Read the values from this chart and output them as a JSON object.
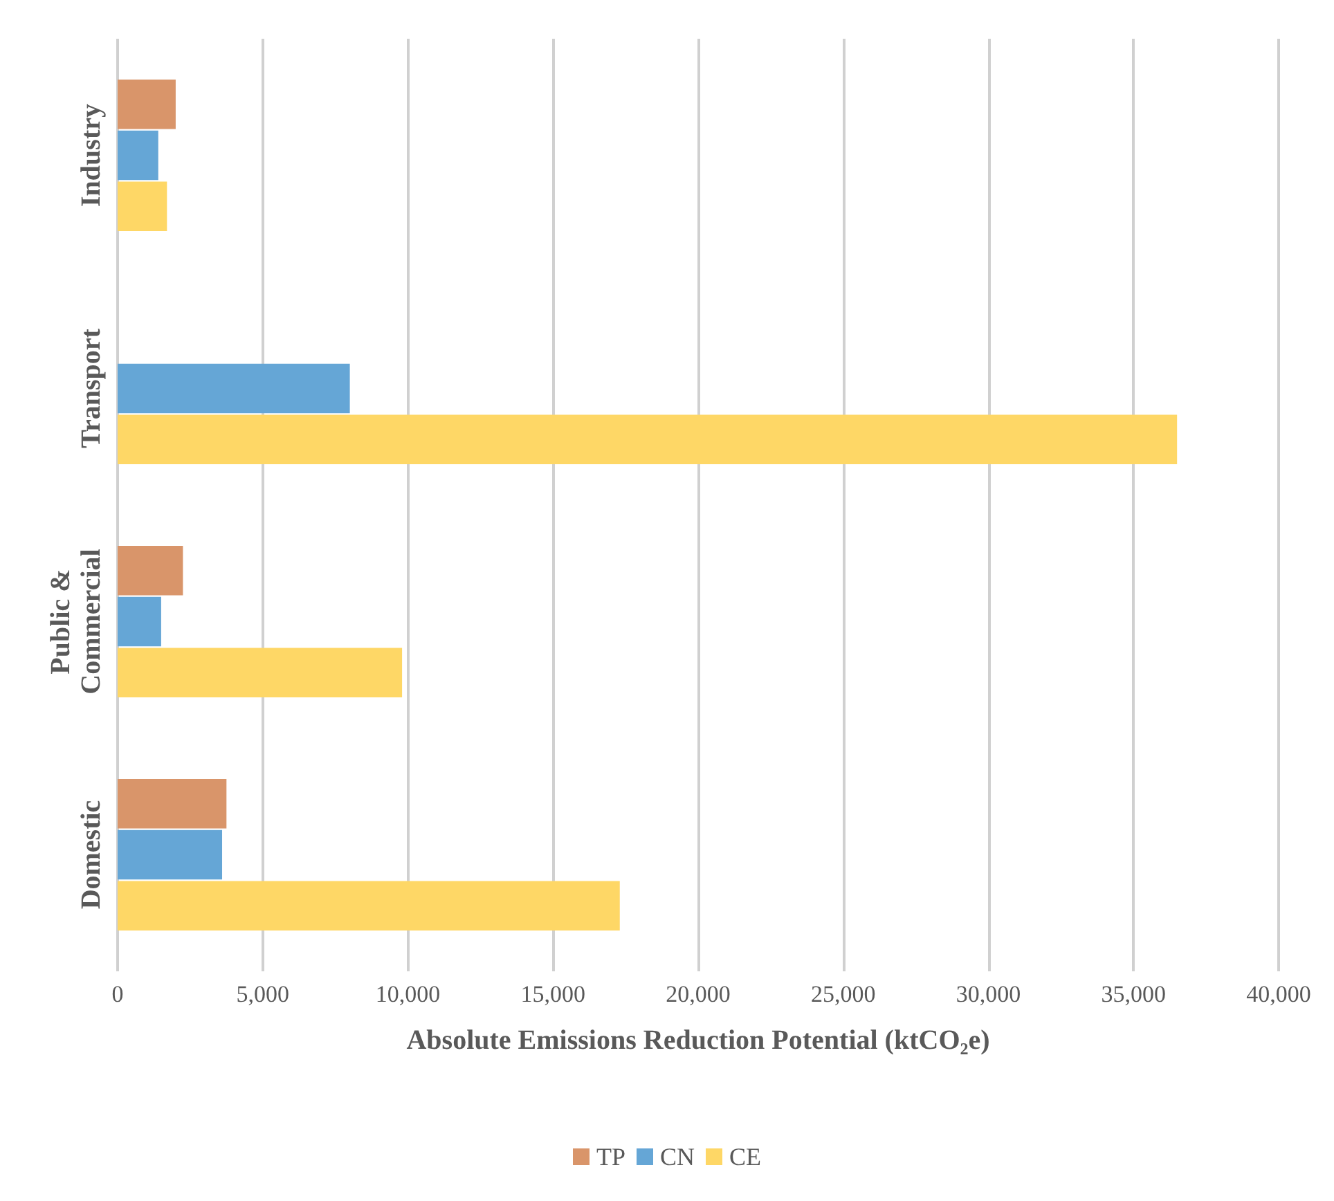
{
  "chart_data": {
    "type": "bar",
    "orientation": "horizontal",
    "xlabel": "Absolute Emissions Reduction Potential (ktCO₂e)",
    "categories": [
      "Industry",
      "Transport",
      "Public & Commercial",
      "Domestic"
    ],
    "series": [
      {
        "name": "TP",
        "color": "#d9956a",
        "values": [
          2000,
          null,
          2250,
          3750
        ]
      },
      {
        "name": "CN",
        "color": "#65a6d6",
        "values": [
          1400,
          8000,
          1500,
          3600
        ]
      },
      {
        "name": "CE",
        "color": "#fed766",
        "values": [
          1700,
          36500,
          9800,
          17300
        ]
      }
    ],
    "xlim": [
      0,
      40000
    ],
    "xticks": [
      0,
      {
        "value": 5000,
        "label": "5,000"
      },
      {
        "value": 10000,
        "label": "10,000"
      },
      {
        "value": 15000,
        "label": "15,000"
      },
      {
        "value": 20000,
        "label": "20,000"
      },
      {
        "value": 25000,
        "label": "25,000"
      },
      {
        "value": 30000,
        "label": "30,000"
      },
      {
        "value": 35000,
        "label": "35,000"
      },
      {
        "value": 40000,
        "label": "40,000"
      }
    ],
    "grid": "x",
    "legend": "bottom"
  }
}
